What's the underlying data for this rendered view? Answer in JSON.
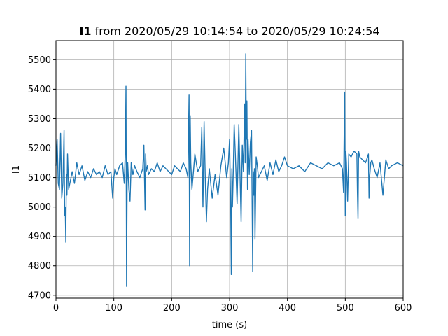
{
  "chart_data": {
    "type": "line",
    "title_bold": "I1",
    "title_rest": " from 2020/05/29 10:14:54 to 2020/05/29 10:24:54",
    "xlabel": "time (s)",
    "ylabel": "I1",
    "xlim": [
      0,
      600
    ],
    "ylim": [
      4690,
      5565
    ],
    "xticks": [
      0,
      100,
      200,
      300,
      400,
      500,
      600
    ],
    "yticks": [
      4700,
      4800,
      4900,
      5000,
      5100,
      5200,
      5300,
      5400,
      5500
    ],
    "grid": true,
    "line_color": "#1f77b4",
    "series": [
      {
        "x": [
          0,
          2,
          4,
          6,
          8,
          10,
          12,
          14,
          15,
          16,
          17,
          18,
          19,
          20,
          22,
          25,
          28,
          32,
          36,
          40,
          45,
          50,
          55,
          60,
          65,
          70,
          75,
          80,
          85,
          90,
          95,
          98,
          100,
          102,
          105,
          110,
          115,
          118,
          120,
          121,
          122,
          123,
          124,
          126,
          128,
          130,
          133,
          136,
          140,
          145,
          150,
          152,
          154,
          155,
          156,
          158,
          160,
          165,
          170,
          175,
          180,
          185,
          190,
          195,
          200,
          205,
          210,
          215,
          220,
          225,
          228,
          230,
          231,
          232,
          233,
          235,
          238,
          240,
          245,
          250,
          252,
          254,
          256,
          258,
          260,
          262,
          265,
          270,
          275,
          280,
          285,
          290,
          295,
          298,
          300,
          302,
          303,
          304,
          305,
          306,
          308,
          310,
          313,
          316,
          320,
          322,
          324,
          326,
          327,
          328,
          329,
          330,
          331,
          332,
          334,
          336,
          338,
          340,
          341,
          342,
          343,
          344,
          346,
          348,
          350,
          355,
          360,
          365,
          370,
          375,
          380,
          385,
          390,
          395,
          400,
          410,
          420,
          430,
          440,
          450,
          460,
          470,
          480,
          490,
          495,
          497,
          498,
          499,
          500,
          501,
          502,
          504,
          506,
          510,
          515,
          520,
          521,
          522,
          523,
          525,
          530,
          535,
          540,
          541,
          542,
          544,
          546,
          550,
          555,
          560,
          565,
          570,
          575,
          580,
          590,
          600
        ],
        "y": [
          5140,
          5230,
          5080,
          5060,
          5250,
          5030,
          5080,
          5260,
          4970,
          5000,
          4880,
          5110,
          5040,
          5180,
          5060,
          5090,
          5120,
          5080,
          5150,
          5110,
          5140,
          5090,
          5120,
          5100,
          5130,
          5110,
          5120,
          5100,
          5140,
          5110,
          5120,
          5030,
          5100,
          5130,
          5110,
          5140,
          5150,
          5080,
          5200,
          5410,
          4730,
          5080,
          5150,
          5060,
          5020,
          5150,
          5110,
          5140,
          5120,
          5100,
          5130,
          5210,
          4990,
          5180,
          5120,
          5140,
          5110,
          5130,
          5120,
          5150,
          5120,
          5140,
          5130,
          5120,
          5110,
          5140,
          5130,
          5120,
          5150,
          5130,
          5100,
          5380,
          4800,
          5310,
          5150,
          5060,
          5130,
          5180,
          5120,
          5140,
          5270,
          5000,
          5290,
          5100,
          4950,
          5060,
          5130,
          5030,
          5110,
          5040,
          5140,
          5200,
          5100,
          5150,
          5230,
          5000,
          4770,
          5130,
          5000,
          5080,
          5280,
          5180,
          5010,
          5280,
          4950,
          5210,
          5120,
          5350,
          5150,
          5520,
          5230,
          5360,
          5060,
          5230,
          5110,
          5220,
          5260,
          4780,
          5120,
          5040,
          5130,
          4890,
          5170,
          5140,
          5100,
          5120,
          5140,
          5090,
          5150,
          5110,
          5160,
          5120,
          5140,
          5170,
          5140,
          5130,
          5140,
          5120,
          5150,
          5140,
          5130,
          5150,
          5140,
          5150,
          5130,
          5050,
          5240,
          5390,
          4970,
          5190,
          5150,
          5020,
          5180,
          5170,
          5190,
          5180,
          5050,
          4960,
          5190,
          5170,
          5160,
          5150,
          5180,
          5030,
          5100,
          5150,
          5160,
          5130,
          5100,
          5150,
          5040,
          5160,
          5130,
          5140,
          5150,
          5140
        ]
      }
    ]
  }
}
